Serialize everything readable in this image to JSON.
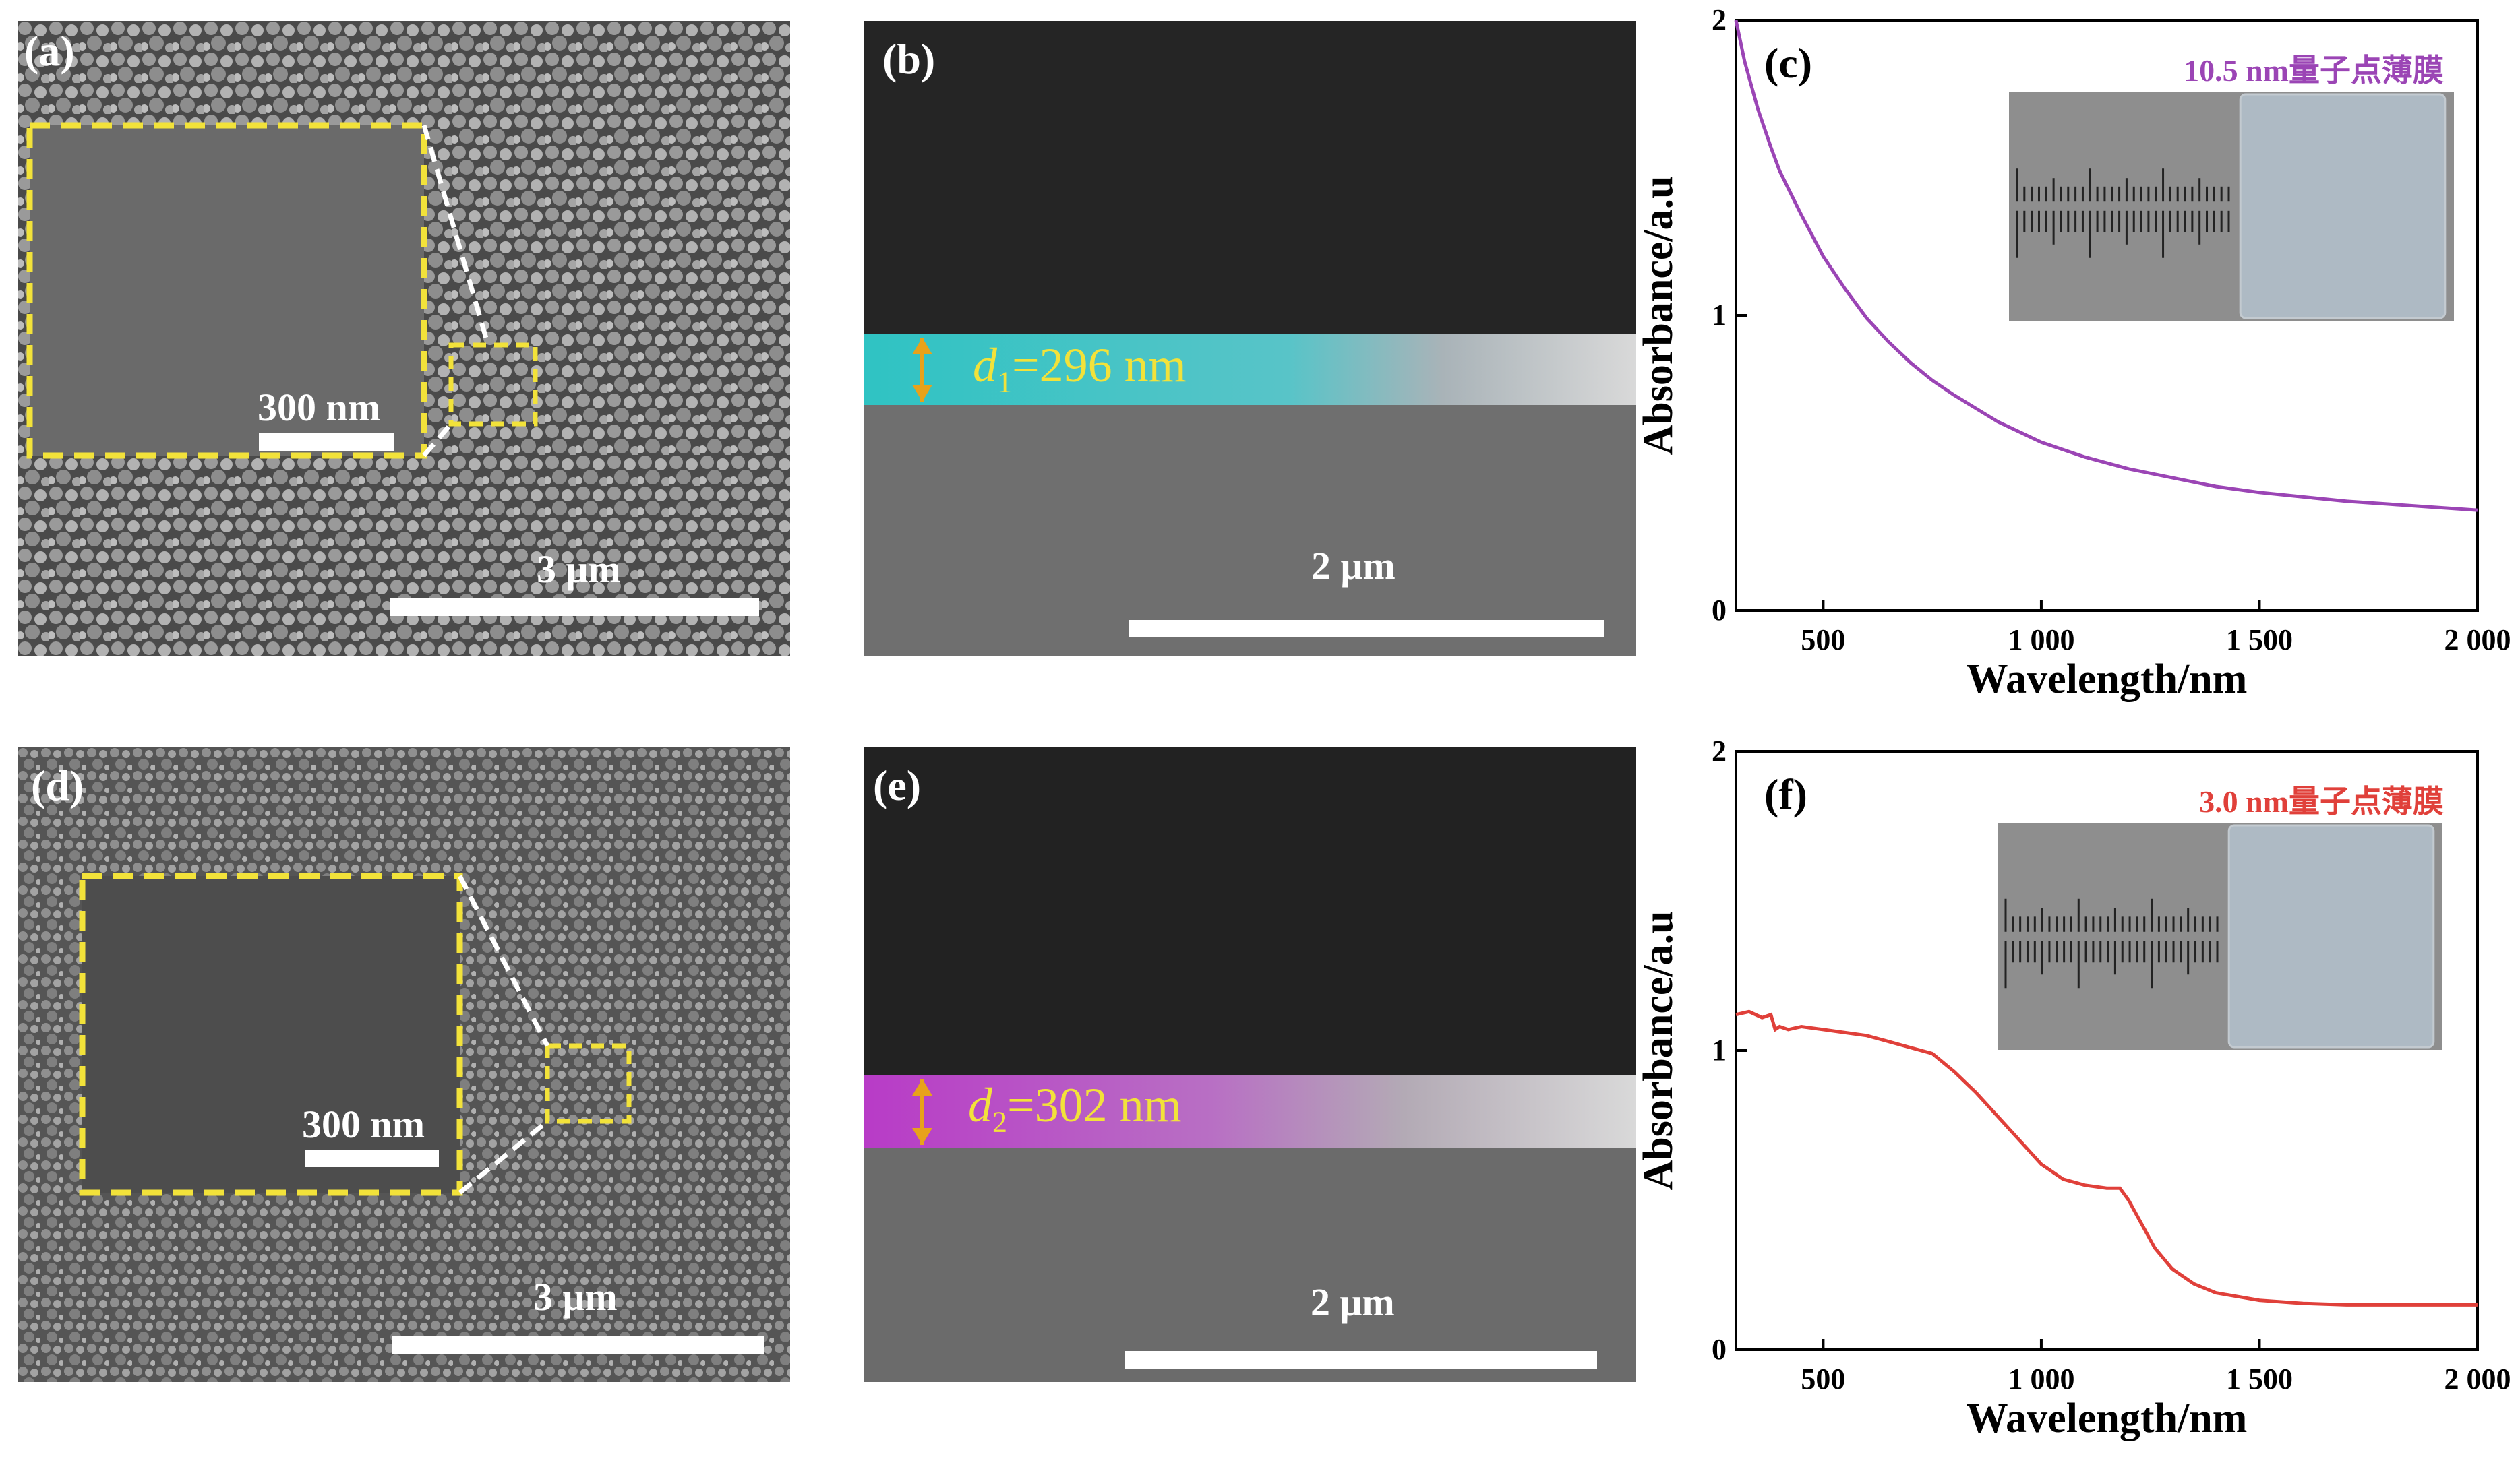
{
  "panels": {
    "a": {
      "label": "(a)",
      "scale_text": "3 μm",
      "inset_scale_text": "300 nm"
    },
    "b": {
      "label": "(b)",
      "scale_text": "2 μm",
      "thickness_label": "=296 nm",
      "thickness_symbol": "d",
      "thickness_sub": "1"
    },
    "d": {
      "label": "(d)",
      "scale_text": "3 μm",
      "inset_scale_text": "300 nm"
    },
    "e": {
      "label": "(e)",
      "scale_text": "2 μm",
      "thickness_label": "=302 nm",
      "thickness_symbol": "d",
      "thickness_sub": "2"
    }
  },
  "chart_data": [
    {
      "type": "line",
      "panel_label": "(c)",
      "title": "",
      "annotation": "10.5 nm量子点薄膜",
      "xlabel": "Wavelength/nm",
      "ylabel": "Absorbance/a.u",
      "xlim": [
        300,
        2000
      ],
      "ylim": [
        0,
        2
      ],
      "xticks": [
        500,
        1000,
        1500,
        2000
      ],
      "xtick_labels": [
        "500",
        "1 000",
        "1 500",
        "2 000"
      ],
      "yticks": [
        0,
        1,
        2
      ],
      "ytick_labels": [
        "0",
        "1",
        "2"
      ],
      "color": "#9b45b5",
      "series": [
        {
          "x": [
            300,
            320,
            350,
            380,
            400,
            450,
            500,
            550,
            600,
            650,
            700,
            750,
            800,
            900,
            1000,
            1100,
            1200,
            1300,
            1400,
            1500,
            1600,
            1700,
            1800,
            1900,
            2000
          ],
          "values": [
            2.0,
            1.86,
            1.7,
            1.57,
            1.49,
            1.34,
            1.2,
            1.09,
            0.99,
            0.91,
            0.84,
            0.78,
            0.73,
            0.64,
            0.57,
            0.52,
            0.48,
            0.45,
            0.42,
            0.4,
            0.385,
            0.37,
            0.36,
            0.35,
            0.34
          ]
        }
      ]
    },
    {
      "type": "line",
      "panel_label": "(f)",
      "title": "",
      "annotation": "3.0 nm量子点薄膜",
      "xlabel": "Wavelength/nm",
      "ylabel": "Absorbance/a.u",
      "xlim": [
        300,
        2000
      ],
      "ylim": [
        0,
        2
      ],
      "xticks": [
        500,
        1000,
        1500,
        2000
      ],
      "xtick_labels": [
        "500",
        "1 000",
        "1 500",
        "2 000"
      ],
      "yticks": [
        0,
        1,
        2
      ],
      "ytick_labels": [
        "0",
        "1",
        "2"
      ],
      "color": "#e0403a",
      "series": [
        {
          "x": [
            300,
            330,
            360,
            380,
            390,
            400,
            420,
            450,
            500,
            550,
            600,
            650,
            700,
            750,
            800,
            850,
            900,
            950,
            1000,
            1050,
            1100,
            1150,
            1180,
            1200,
            1230,
            1260,
            1300,
            1350,
            1400,
            1500,
            1600,
            1700,
            1800,
            1900,
            2000
          ],
          "values": [
            1.12,
            1.13,
            1.11,
            1.12,
            1.07,
            1.08,
            1.07,
            1.08,
            1.07,
            1.06,
            1.05,
            1.03,
            1.01,
            0.99,
            0.93,
            0.86,
            0.78,
            0.7,
            0.62,
            0.57,
            0.55,
            0.54,
            0.54,
            0.5,
            0.42,
            0.34,
            0.27,
            0.22,
            0.19,
            0.165,
            0.155,
            0.15,
            0.15,
            0.15,
            0.15
          ]
        }
      ]
    }
  ]
}
